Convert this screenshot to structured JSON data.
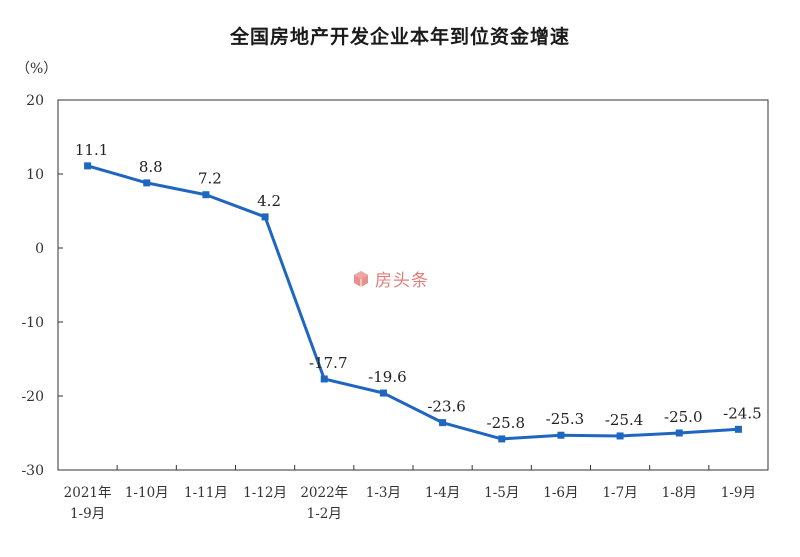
{
  "title": "全国房地产开发企业本年到位资金增速",
  "unit_label": "（%）",
  "watermark": {
    "text": "房头条",
    "icon": "box-logo-icon",
    "color": "#d9534f"
  },
  "colors": {
    "line": "#1f66c1",
    "axis": "#333333"
  },
  "chart_data": {
    "type": "line",
    "title": "全国房地产开发企业本年到位资金增速",
    "ylabel": "（%）",
    "xlabel": "",
    "ylim": [
      -30,
      20
    ],
    "yticks": [
      20,
      10,
      0,
      -10,
      -20,
      -30
    ],
    "categories": [
      [
        "2021年",
        "1-9月"
      ],
      [
        "1-10月"
      ],
      [
        "1-11月"
      ],
      [
        "1-12月"
      ],
      [
        "2022年",
        "1-2月"
      ],
      [
        "1-3月"
      ],
      [
        "1-4月"
      ],
      [
        "1-5月"
      ],
      [
        "1-6月"
      ],
      [
        "1-7月"
      ],
      [
        "1-8月"
      ],
      [
        "1-9月"
      ]
    ],
    "series": [
      {
        "values": [
          11.1,
          8.8,
          7.2,
          4.2,
          -17.7,
          -19.6,
          -23.6,
          -25.8,
          -25.3,
          -25.4,
          -25.0,
          -24.5
        ],
        "labels": [
          "11.1",
          "8.8",
          "7.2",
          "4.2",
          "-17.7",
          "-19.6",
          "-23.6",
          "-25.8",
          "-25.3",
          "-25.4",
          "-25.0",
          "-24.5"
        ]
      }
    ],
    "grid": false,
    "legend": "none"
  }
}
